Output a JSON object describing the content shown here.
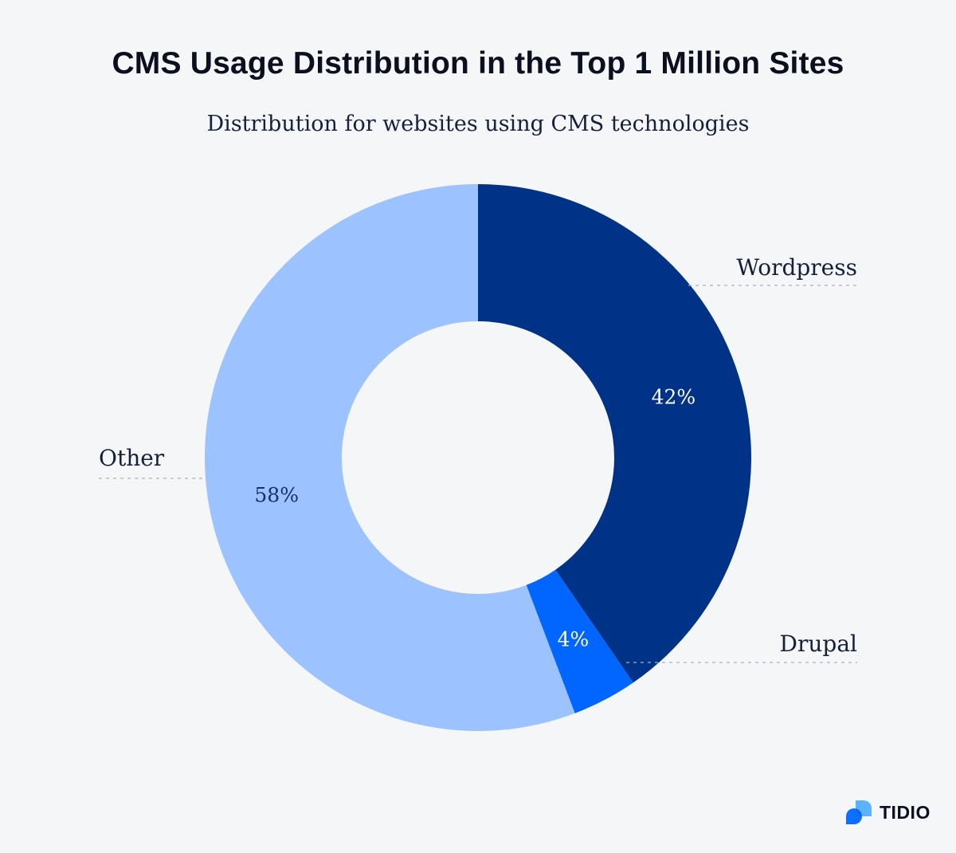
{
  "header": {
    "title": "CMS Usage Distribution in the Top 1 Million Sites",
    "subtitle": "Distribution for websites using CMS technologies"
  },
  "brand": {
    "name": "TIDIO",
    "logo_icon": "speech-bubbles-icon",
    "logo_colors": [
      "#0066ff",
      "#59b3ff"
    ]
  },
  "chart_data": {
    "type": "pie",
    "variant": "donut",
    "title": "CMS Usage Distribution in the Top 1 Million Sites",
    "subtitle": "Distribution for websites using CMS technologies",
    "slices": [
      {
        "label": "Wordpress",
        "value": 42,
        "display": "42%",
        "color": "#003388",
        "label_color": "#ffffff"
      },
      {
        "label": "Drupal",
        "value": 4,
        "display": "4%",
        "color": "#0066ff",
        "label_color": "#ffffff"
      },
      {
        "label": "Other",
        "value": 58,
        "display": "58%",
        "color": "#9cc2ff",
        "label_color": "#15306e"
      }
    ],
    "start_angle": "12 o'clock",
    "direction": "clockwise",
    "legend": "external-labels-with-dashed-leaders"
  }
}
